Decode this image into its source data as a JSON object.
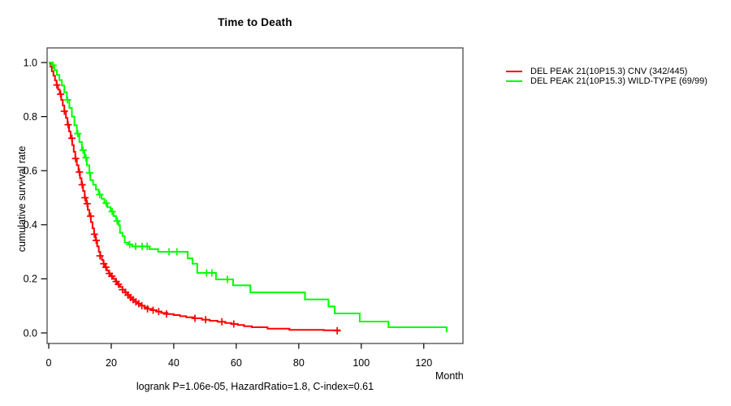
{
  "title": "Time to Death",
  "axis": {
    "x_label": "Month",
    "y_label": "cumulative survival rate",
    "x_ticks": [
      0,
      20,
      40,
      60,
      80,
      100,
      120
    ],
    "y_ticks": [
      0,
      0.2,
      0.4,
      0.6,
      0.8,
      1.0
    ]
  },
  "annotation": "logrank P=1.06e-05, HazardRatio=1.8, C-index=0.61",
  "legend": {
    "entries": [
      {
        "label": "DEL PEAK 21(10P15.3) CNV (342/445)",
        "color": "#ff0000"
      },
      {
        "label": "DEL PEAK 21(10P15.3) WILD-TYPE (69/99)",
        "color": "#00ff00"
      }
    ]
  },
  "chart_data": {
    "type": "line",
    "subtype": "kaplan-meier-survival-step",
    "title": "Time to Death",
    "xlabel": "Month",
    "ylabel": "cumulative survival rate",
    "xlim": [
      0,
      133
    ],
    "ylim": [
      0,
      1.0
    ],
    "x_ticks": [
      0,
      20,
      40,
      60,
      80,
      100,
      120
    ],
    "y_ticks": [
      0,
      0.2,
      0.4,
      0.6,
      0.8,
      1.0
    ],
    "grid": false,
    "legend_position": "right-outside",
    "stats": {
      "logrank_p": "1.06e-05",
      "hazard_ratio": "1.8",
      "c_index": "0.61"
    },
    "series": [
      {
        "name": "DEL PEAK 21(10P15.3) CNV (342/445)",
        "color": "#ff0000",
        "events": 342,
        "n": 445,
        "points": [
          [
            0,
            1.0
          ],
          [
            0.5,
            0.985
          ],
          [
            1.0,
            0.968
          ],
          [
            1.5,
            0.951
          ],
          [
            2.0,
            0.934
          ],
          [
            2.5,
            0.917
          ],
          [
            3.0,
            0.9
          ],
          [
            3.5,
            0.883
          ],
          [
            4.0,
            0.862
          ],
          [
            4.5,
            0.841
          ],
          [
            5.0,
            0.82
          ],
          [
            5.5,
            0.795
          ],
          [
            6.0,
            0.77
          ],
          [
            6.5,
            0.745
          ],
          [
            7.0,
            0.72
          ],
          [
            7.5,
            0.695
          ],
          [
            8.0,
            0.67
          ],
          [
            8.5,
            0.645
          ],
          [
            9.0,
            0.62
          ],
          [
            9.5,
            0.595
          ],
          [
            10.0,
            0.572
          ],
          [
            10.5,
            0.548
          ],
          [
            11.0,
            0.525
          ],
          [
            11.5,
            0.5
          ],
          [
            12.0,
            0.478
          ],
          [
            12.5,
            0.455
          ],
          [
            13.0,
            0.432
          ],
          [
            13.5,
            0.41
          ],
          [
            14.0,
            0.387
          ],
          [
            14.5,
            0.365
          ],
          [
            15.0,
            0.342
          ],
          [
            15.5,
            0.32
          ],
          [
            16.0,
            0.3
          ],
          [
            16.5,
            0.285
          ],
          [
            17.0,
            0.27
          ],
          [
            17.5,
            0.256
          ],
          [
            18.0,
            0.243
          ],
          [
            18.6,
            0.231
          ],
          [
            19.2,
            0.22
          ],
          [
            19.9,
            0.21
          ],
          [
            20.6,
            0.2
          ],
          [
            21.3,
            0.19
          ],
          [
            22.0,
            0.18
          ],
          [
            22.8,
            0.17
          ],
          [
            23.6,
            0.16
          ],
          [
            24.4,
            0.15
          ],
          [
            25.2,
            0.14
          ],
          [
            26.0,
            0.131
          ],
          [
            26.8,
            0.123
          ],
          [
            27.6,
            0.115
          ],
          [
            28.5,
            0.108
          ],
          [
            29.5,
            0.101
          ],
          [
            30.6,
            0.095
          ],
          [
            31.8,
            0.089
          ],
          [
            33.0,
            0.084
          ],
          [
            34.5,
            0.079
          ],
          [
            36.0,
            0.074
          ],
          [
            38.0,
            0.07
          ],
          [
            40.0,
            0.066
          ],
          [
            42.0,
            0.062
          ],
          [
            44.0,
            0.058
          ],
          [
            46.5,
            0.054
          ],
          [
            49.0,
            0.049
          ],
          [
            51.5,
            0.045
          ],
          [
            54.0,
            0.041
          ],
          [
            56.5,
            0.037
          ],
          [
            58.5,
            0.033
          ],
          [
            60.5,
            0.029
          ],
          [
            62.5,
            0.025
          ],
          [
            65.0,
            0.021
          ],
          [
            70.0,
            0.016
          ],
          [
            77.0,
            0.011
          ],
          [
            88.0,
            0.01
          ],
          [
            93.0,
            0.008
          ]
        ],
        "censors": [
          [
            2.6,
            0.917
          ],
          [
            3.8,
            0.883
          ],
          [
            5.0,
            0.82
          ],
          [
            6.2,
            0.77
          ],
          [
            7.4,
            0.72
          ],
          [
            8.6,
            0.645
          ],
          [
            9.8,
            0.595
          ],
          [
            10.7,
            0.548
          ],
          [
            11.6,
            0.5
          ],
          [
            12.3,
            0.478
          ],
          [
            13.4,
            0.432
          ],
          [
            14.6,
            0.365
          ],
          [
            15.2,
            0.342
          ],
          [
            16.4,
            0.285
          ],
          [
            17.6,
            0.256
          ],
          [
            18.3,
            0.243
          ],
          [
            19.4,
            0.22
          ],
          [
            20.2,
            0.21
          ],
          [
            21.6,
            0.19
          ],
          [
            22.3,
            0.18
          ],
          [
            23.6,
            0.16
          ],
          [
            24.6,
            0.15
          ],
          [
            25.4,
            0.14
          ],
          [
            26.2,
            0.131
          ],
          [
            27.0,
            0.123
          ],
          [
            27.9,
            0.115
          ],
          [
            28.8,
            0.108
          ],
          [
            29.8,
            0.101
          ],
          [
            31.6,
            0.089
          ],
          [
            33.4,
            0.084
          ],
          [
            35.2,
            0.079
          ],
          [
            37.7,
            0.07
          ],
          [
            46.8,
            0.054
          ],
          [
            50.2,
            0.049
          ],
          [
            55.4,
            0.041
          ],
          [
            59.2,
            0.033
          ],
          [
            92.3,
            0.008
          ]
        ]
      },
      {
        "name": "DEL PEAK 21(10P15.3) WILD-TYPE (69/99)",
        "color": "#00ff00",
        "events": 69,
        "n": 99,
        "points": [
          [
            0,
            1.0
          ],
          [
            1.0,
            0.99
          ],
          [
            1.8,
            0.972
          ],
          [
            2.6,
            0.954
          ],
          [
            3.4,
            0.935
          ],
          [
            4.2,
            0.915
          ],
          [
            5.0,
            0.89
          ],
          [
            5.8,
            0.862
          ],
          [
            6.6,
            0.832
          ],
          [
            7.4,
            0.8
          ],
          [
            8.2,
            0.768
          ],
          [
            9.0,
            0.737
          ],
          [
            9.8,
            0.706
          ],
          [
            10.6,
            0.676
          ],
          [
            11.4,
            0.648
          ],
          [
            12.2,
            0.62
          ],
          [
            13.0,
            0.592
          ],
          [
            13.3,
            0.565
          ],
          [
            14.2,
            0.548
          ],
          [
            15.1,
            0.53
          ],
          [
            16.0,
            0.512
          ],
          [
            16.9,
            0.496
          ],
          [
            17.8,
            0.48
          ],
          [
            18.8,
            0.465
          ],
          [
            19.8,
            0.449
          ],
          [
            20.7,
            0.432
          ],
          [
            21.6,
            0.414
          ],
          [
            22.4,
            0.398
          ],
          [
            22.8,
            0.37
          ],
          [
            23.6,
            0.358
          ],
          [
            24.3,
            0.334
          ],
          [
            25.6,
            0.327
          ],
          [
            26.6,
            0.32
          ],
          [
            32.2,
            0.31
          ],
          [
            35.0,
            0.3
          ],
          [
            44.5,
            0.276
          ],
          [
            46.0,
            0.256
          ],
          [
            47.5,
            0.222
          ],
          [
            53.5,
            0.198
          ],
          [
            59.0,
            0.176
          ],
          [
            64.5,
            0.15
          ],
          [
            82.0,
            0.124
          ],
          [
            89.5,
            0.098
          ],
          [
            91.5,
            0.072
          ],
          [
            99.5,
            0.042
          ],
          [
            108.7,
            0.021
          ],
          [
            127.3,
            0.002
          ]
        ],
        "censors": [
          [
            1.4,
            0.99
          ],
          [
            6.0,
            0.862
          ],
          [
            9.3,
            0.737
          ],
          [
            11.0,
            0.676
          ],
          [
            11.9,
            0.648
          ],
          [
            13.1,
            0.592
          ],
          [
            16.3,
            0.512
          ],
          [
            18.4,
            0.48
          ],
          [
            20.3,
            0.449
          ],
          [
            21.9,
            0.414
          ],
          [
            25.9,
            0.327
          ],
          [
            27.8,
            0.32
          ],
          [
            29.9,
            0.32
          ],
          [
            31.5,
            0.32
          ],
          [
            38.5,
            0.3
          ],
          [
            41.0,
            0.3
          ],
          [
            50.5,
            0.222
          ],
          [
            52.2,
            0.222
          ],
          [
            57.2,
            0.198
          ]
        ]
      }
    ]
  }
}
